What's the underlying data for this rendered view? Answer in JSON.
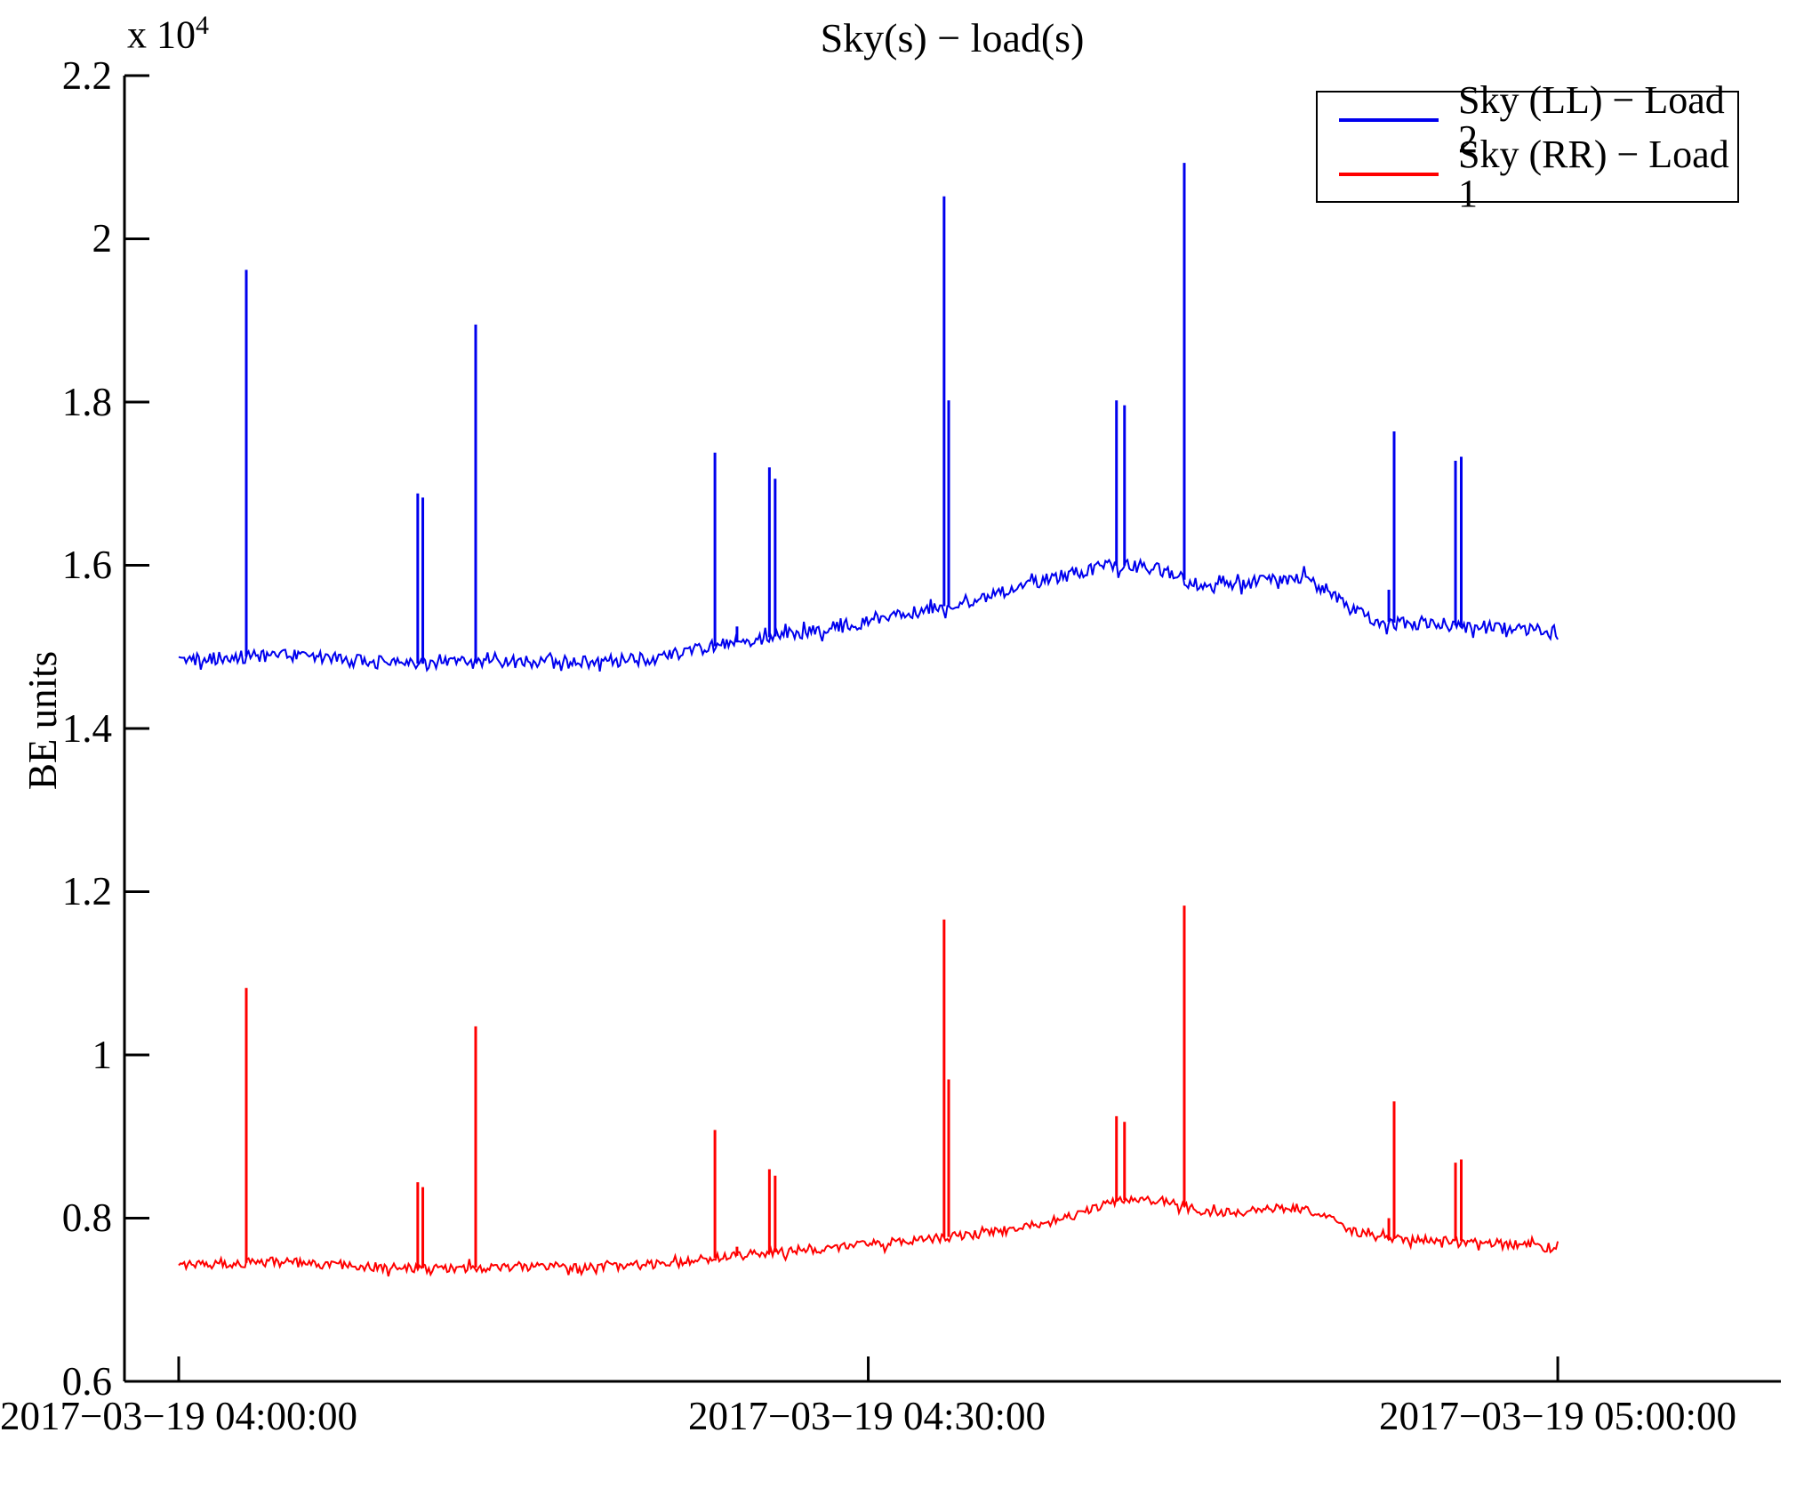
{
  "figure": {
    "title": "Sky(s) − load(s)",
    "ylabel": "BE units",
    "scale_label": {
      "base": "x 10",
      "exponent": "4"
    }
  },
  "chart_data": {
    "type": "line",
    "title": "Sky(s) − load(s)",
    "xlabel": "",
    "ylabel": "BE units",
    "grid": false,
    "legend_position": "top-right",
    "y_axis": {
      "unit_exponent": 4,
      "ylim": [
        6000,
        22000
      ],
      "ticks": [
        {
          "value": 22000,
          "label": "2.2"
        },
        {
          "value": 20000,
          "label": "2"
        },
        {
          "value": 18000,
          "label": "1.8"
        },
        {
          "value": 16000,
          "label": "1.6"
        },
        {
          "value": 14000,
          "label": "1.4"
        },
        {
          "value": 12000,
          "label": "1.2"
        },
        {
          "value": 10000,
          "label": "1"
        },
        {
          "value": 8000,
          "label": "0.8"
        },
        {
          "value": 6000,
          "label": "0.6"
        }
      ]
    },
    "x_axis": {
      "xlim_minutes": [
        -2.36,
        69.7
      ],
      "ticks": [
        {
          "minute": 0,
          "label": "2017−03−19 04:00:00"
        },
        {
          "minute": 30,
          "label": "2017−03−19 04:30:00"
        },
        {
          "minute": 60,
          "label": "2017−03−19 05:00:00"
        }
      ]
    },
    "legend": {
      "items": [
        {
          "label": "Sky (LL) − Load 2"
        },
        {
          "label": "Sky (RR) − Load 1"
        }
      ]
    },
    "series": [
      {
        "name": "Sky (LL) − Load 2",
        "color": "#0000ee",
        "noise_amp": 80,
        "seed": 42,
        "trend": [
          [
            0,
            14830
          ],
          [
            2,
            14865
          ],
          [
            4,
            14900
          ],
          [
            5,
            14885
          ],
          [
            7,
            14845
          ],
          [
            9,
            14805
          ],
          [
            11,
            14790
          ],
          [
            13,
            14810
          ],
          [
            15,
            14820
          ],
          [
            17,
            14810
          ],
          [
            19,
            14825
          ],
          [
            21,
            14870
          ],
          [
            23,
            14990
          ],
          [
            25,
            15090
          ],
          [
            27,
            15170
          ],
          [
            29,
            15260
          ],
          [
            31,
            15365
          ],
          [
            33,
            15480
          ],
          [
            35,
            15600
          ],
          [
            37,
            15770
          ],
          [
            39,
            15905
          ],
          [
            40,
            15970
          ],
          [
            41,
            16000
          ],
          [
            42,
            15985
          ],
          [
            43,
            15920
          ],
          [
            44,
            15790
          ],
          [
            45,
            15730
          ],
          [
            46,
            15745
          ],
          [
            47,
            15800
          ],
          [
            48,
            15840
          ],
          [
            49,
            15830
          ],
          [
            50,
            15690
          ],
          [
            51,
            15470
          ],
          [
            52,
            15335
          ],
          [
            53,
            15290
          ],
          [
            54,
            15295
          ],
          [
            55,
            15280
          ],
          [
            56,
            15250
          ],
          [
            57,
            15240
          ],
          [
            58,
            15230
          ],
          [
            59,
            15210
          ],
          [
            60,
            15160
          ]
        ],
        "spikes": [
          [
            2.94,
            19620
          ],
          [
            10.4,
            16880
          ],
          [
            10.62,
            16830
          ],
          [
            12.92,
            18950
          ],
          [
            23.33,
            17380
          ],
          [
            24.29,
            15250
          ],
          [
            25.7,
            17200
          ],
          [
            25.95,
            17060
          ],
          [
            33.3,
            20520
          ],
          [
            33.5,
            18020
          ],
          [
            40.8,
            18020
          ],
          [
            41.15,
            17960
          ],
          [
            43.75,
            20930
          ],
          [
            52.65,
            15700
          ],
          [
            52.88,
            17640
          ],
          [
            55.55,
            17280
          ],
          [
            55.8,
            17330
          ]
        ]
      },
      {
        "name": "Sky (RR) − Load 1",
        "color": "#ff0000",
        "noise_amp": 55,
        "seed": 1337,
        "trend": [
          [
            0,
            7420
          ],
          [
            2,
            7440
          ],
          [
            4,
            7465
          ],
          [
            5,
            7455
          ],
          [
            7,
            7430
          ],
          [
            9,
            7395
          ],
          [
            11,
            7385
          ],
          [
            13,
            7395
          ],
          [
            15,
            7408
          ],
          [
            17,
            7405
          ],
          [
            19,
            7415
          ],
          [
            21,
            7440
          ],
          [
            23,
            7500
          ],
          [
            25,
            7560
          ],
          [
            27,
            7610
          ],
          [
            29,
            7652
          ],
          [
            31,
            7700
          ],
          [
            33,
            7755
          ],
          [
            35,
            7812
          ],
          [
            37,
            7900
          ],
          [
            39,
            8030
          ],
          [
            40,
            8130
          ],
          [
            41,
            8220
          ],
          [
            42,
            8230
          ],
          [
            43,
            8200
          ],
          [
            44,
            8120
          ],
          [
            45,
            8060
          ],
          [
            46,
            8072
          ],
          [
            47,
            8110
          ],
          [
            48,
            8130
          ],
          [
            49,
            8118
          ],
          [
            50,
            8000
          ],
          [
            51,
            7850
          ],
          [
            52,
            7775
          ],
          [
            53,
            7740
          ],
          [
            54,
            7750
          ],
          [
            55,
            7740
          ],
          [
            56,
            7720
          ],
          [
            57,
            7700
          ],
          [
            58,
            7680
          ],
          [
            59,
            7652
          ],
          [
            60,
            7620
          ]
        ],
        "spikes": [
          [
            2.94,
            10820
          ],
          [
            10.4,
            8440
          ],
          [
            10.62,
            8380
          ],
          [
            12.92,
            10350
          ],
          [
            23.33,
            9080
          ],
          [
            24.29,
            7650
          ],
          [
            25.7,
            8600
          ],
          [
            25.95,
            8520
          ],
          [
            33.3,
            11660
          ],
          [
            33.5,
            9700
          ],
          [
            40.8,
            9250
          ],
          [
            41.15,
            9180
          ],
          [
            43.75,
            11830
          ],
          [
            52.65,
            8000
          ],
          [
            52.88,
            9430
          ],
          [
            55.55,
            8680
          ],
          [
            55.8,
            8720
          ]
        ]
      }
    ]
  }
}
